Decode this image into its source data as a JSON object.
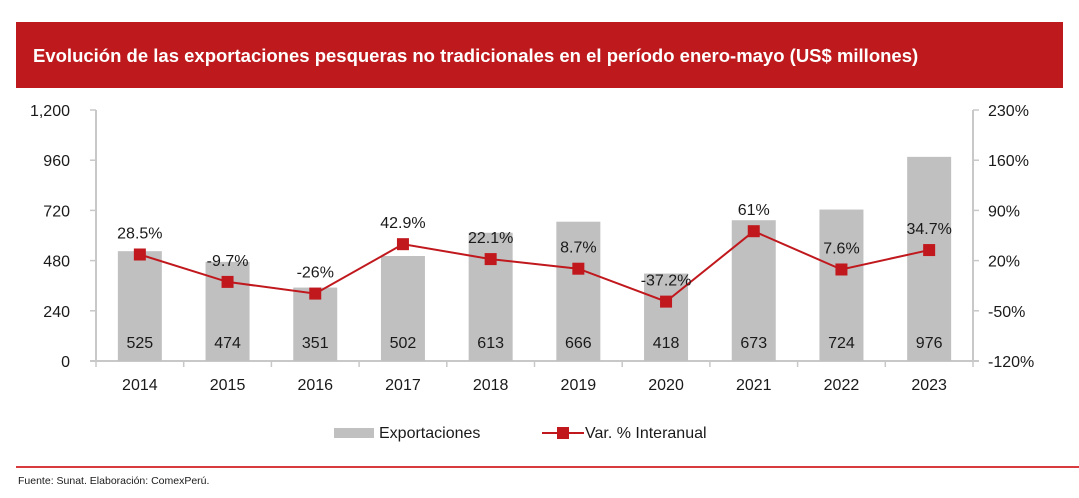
{
  "title": "Evolución de las exportaciones pesqueras no tradicionales en el período enero-mayo (US$ millones)",
  "footer": "Fuente: Sunat. Elaboración: ComexPerú.",
  "colors": {
    "bar": "#c0c0c0",
    "line": "#c0181d",
    "title_bg": "#be1a1d"
  },
  "chart_data": {
    "type": "bar",
    "title": "Evolución de las exportaciones pesqueras no tradicionales en el período enero-mayo (US$ millones)",
    "categories": [
      "2014",
      "2015",
      "2016",
      "2017",
      "2018",
      "2019",
      "2020",
      "2021",
      "2022",
      "2023"
    ],
    "series": [
      {
        "name": "Exportaciones",
        "type": "bar",
        "axis": "left",
        "values": [
          525,
          474,
          351,
          502,
          613,
          666,
          418,
          673,
          724,
          976
        ],
        "labels": [
          "525",
          "474",
          "351",
          "502",
          "613",
          "666",
          "418",
          "673",
          "724",
          "976"
        ]
      },
      {
        "name": "Var. % Interanual",
        "type": "line",
        "axis": "right",
        "values": [
          28.5,
          -9.7,
          -26,
          42.9,
          22.1,
          8.7,
          -37.2,
          61,
          7.6,
          34.7
        ],
        "labels": [
          "28.5%",
          "-9.7%",
          "-26%",
          "42.9%",
          "22.1%",
          "8.7%",
          "-37.2%",
          "61%",
          "7.6%",
          "34.7%"
        ]
      }
    ],
    "ylim": [
      0,
      1200
    ],
    "yticks": [
      "0",
      "240",
      "480",
      "720",
      "960",
      "1,200"
    ],
    "ytick_values": [
      0,
      240,
      480,
      720,
      960,
      1200
    ],
    "y2lim": [
      -120,
      230
    ],
    "y2ticks": [
      "-120%",
      "-50%",
      "20%",
      "90%",
      "160%",
      "230%"
    ],
    "y2tick_values": [
      -120,
      -50,
      20,
      90,
      160,
      230
    ],
    "xlabel": "",
    "ylabel": "",
    "y2label": "",
    "grid": false,
    "legend": {
      "position": "bottom",
      "entries": [
        "Exportaciones",
        "Var. % Interanual"
      ]
    }
  }
}
